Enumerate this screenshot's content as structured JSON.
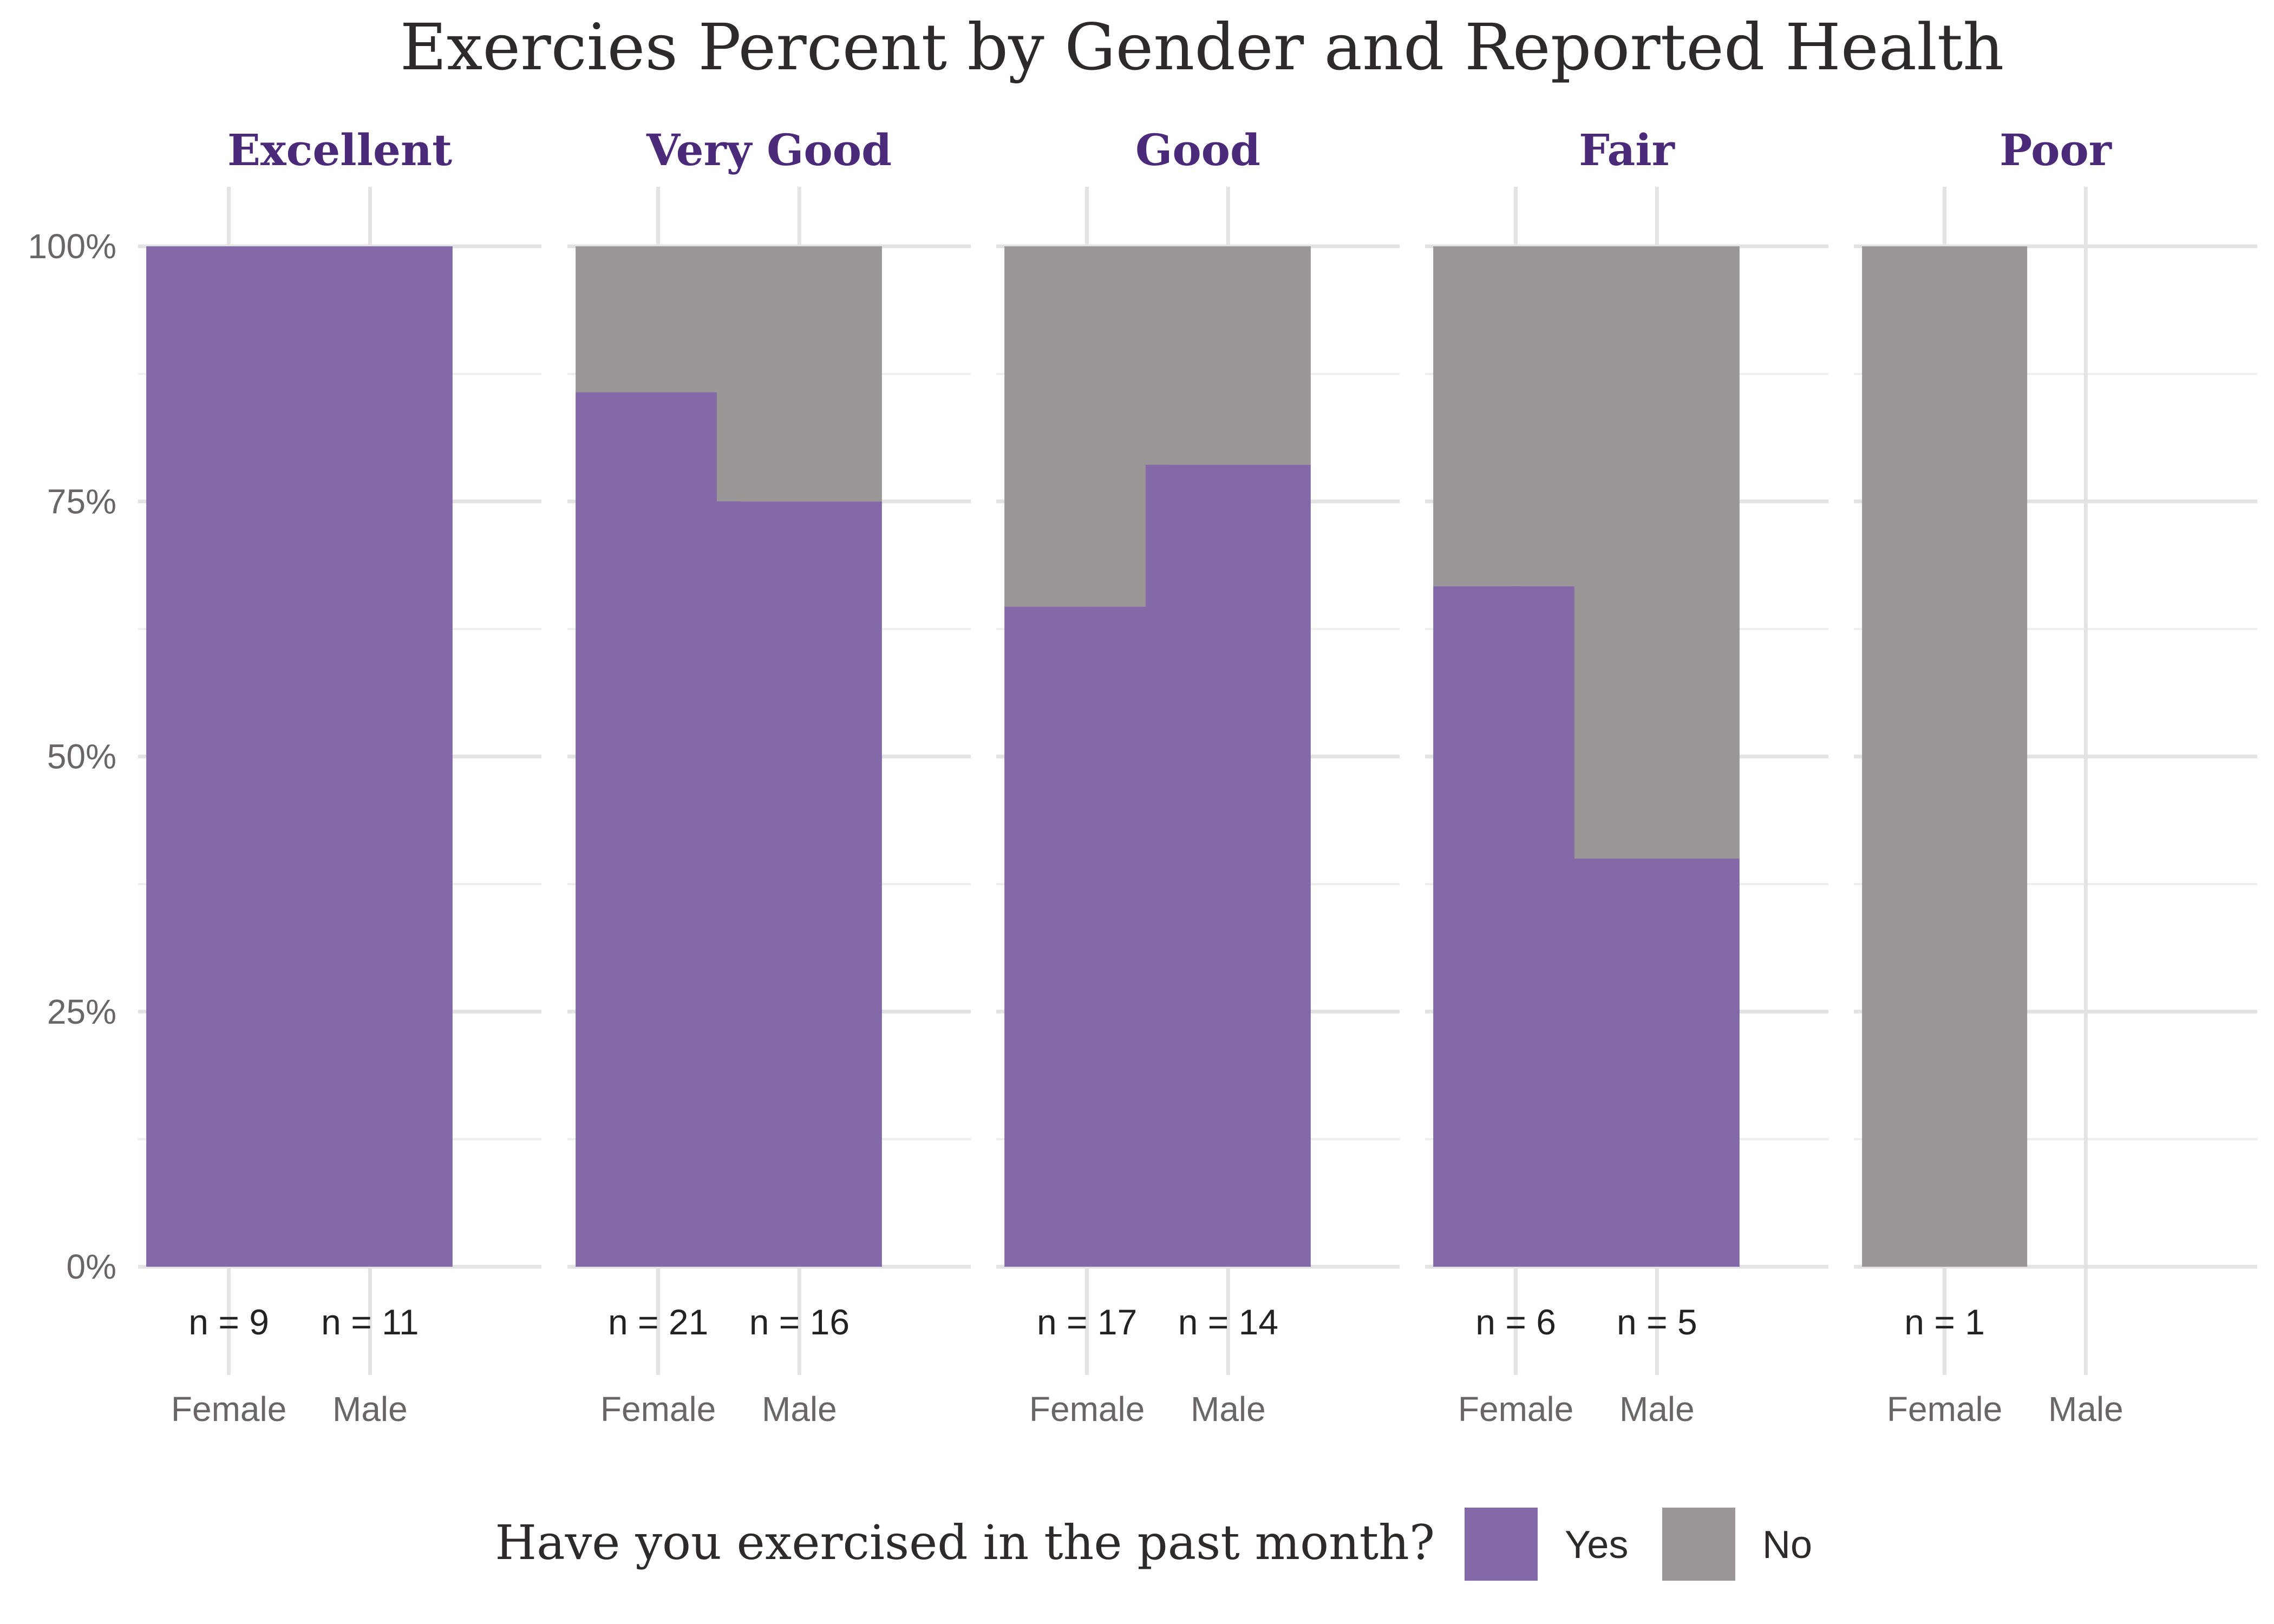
{
  "chart_data": {
    "type": "bar",
    "stacked": true,
    "title": "Exercies Percent by Gender and Reported Health",
    "ylabel": "",
    "xlabel": "",
    "ylim": [
      0,
      1
    ],
    "y_ticks": [
      "0%",
      "25%",
      "50%",
      "75%",
      "100%"
    ],
    "y_tick_values": [
      0,
      0.25,
      0.5,
      0.75,
      1.0
    ],
    "categories": [
      "Female",
      "Male"
    ],
    "legend": {
      "title": "Have you exercised in the past month?",
      "placement": "bottom",
      "entries": [
        {
          "name": "Yes",
          "color": "#8469a8"
        },
        {
          "name": "No",
          "color": "#9b9797"
        }
      ]
    },
    "facets": [
      {
        "label": "Excellent",
        "bars": [
          {
            "gender": "Female",
            "count_label": "n = 9",
            "yes": 1.0,
            "no": 0.0
          },
          {
            "gender": "Male",
            "count_label": "n = 11",
            "yes": 1.0,
            "no": 0.0
          }
        ]
      },
      {
        "label": "Very Good",
        "bars": [
          {
            "gender": "Female",
            "count_label": "n = 21",
            "yes": 0.857,
            "no": 0.143
          },
          {
            "gender": "Male",
            "count_label": "n = 16",
            "yes": 0.75,
            "no": 0.25
          }
        ]
      },
      {
        "label": "Good",
        "bars": [
          {
            "gender": "Female",
            "count_label": "n = 17",
            "yes": 0.647,
            "no": 0.353
          },
          {
            "gender": "Male",
            "count_label": "n = 14",
            "yes": 0.786,
            "no": 0.214
          }
        ]
      },
      {
        "label": "Fair",
        "bars": [
          {
            "gender": "Female",
            "count_label": "n = 6",
            "yes": 0.667,
            "no": 0.333
          },
          {
            "gender": "Male",
            "count_label": "n = 5",
            "yes": 0.4,
            "no": 0.6
          }
        ]
      },
      {
        "label": "Poor",
        "bars": [
          {
            "gender": "Female",
            "count_label": "n = 1",
            "yes": 0.0,
            "no": 1.0
          },
          {
            "gender": "Male",
            "count_label": "",
            "yes": null,
            "no": null
          }
        ]
      }
    ]
  }
}
